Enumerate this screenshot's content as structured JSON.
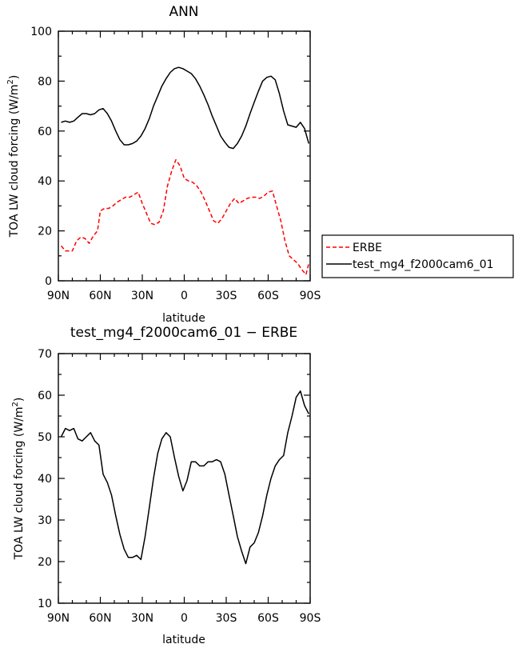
{
  "chart_data": [
    {
      "type": "line",
      "title": "ANN",
      "xlabel": "latitude",
      "ylabel": "TOA LW cloud forcing (W/m²)",
      "ylabel_main": "TOA LW cloud forcing (W/m",
      "ylabel_sup": "2",
      "ylabel_end": ")",
      "xlim": [
        90,
        -90
      ],
      "ylim": [
        0,
        100
      ],
      "x_ticks": [
        90,
        60,
        30,
        0,
        -30,
        -60,
        -90
      ],
      "x_tick_labels": [
        "90N",
        "60N",
        "30N",
        "0",
        "30S",
        "60S",
        "90S"
      ],
      "y_ticks": [
        0,
        20,
        40,
        60,
        80,
        100
      ],
      "y_tick_labels": [
        "0",
        "20",
        "40",
        "60",
        "80",
        "100"
      ],
      "legend_position": "right",
      "series": [
        {
          "name": "ERBE",
          "color": "#ff0000",
          "dash": true,
          "points": [
            [
              88,
              14
            ],
            [
              85,
              12
            ],
            [
              80,
              12
            ],
            [
              77,
              16
            ],
            [
              74,
              17.5
            ],
            [
              71,
              17
            ],
            [
              68,
              15
            ],
            [
              65,
              18
            ],
            [
              62,
              20
            ],
            [
              60,
              28
            ],
            [
              57,
              29
            ],
            [
              54,
              29
            ],
            [
              51,
              30
            ],
            [
              48,
              31.5
            ],
            [
              45,
              32.5
            ],
            [
              42,
              33.5
            ],
            [
              39,
              33.5
            ],
            [
              36,
              34.5
            ],
            [
              33,
              35.5
            ],
            [
              30,
              31
            ],
            [
              27,
              27
            ],
            [
              24,
              23
            ],
            [
              21,
              22.5
            ],
            [
              18,
              23.5
            ],
            [
              15,
              28
            ],
            [
              12,
              38
            ],
            [
              9,
              44
            ],
            [
              6,
              48.5
            ],
            [
              3,
              46
            ],
            [
              0,
              41
            ],
            [
              -3,
              40
            ],
            [
              -6,
              39.5
            ],
            [
              -9,
              38
            ],
            [
              -12,
              35.5
            ],
            [
              -15,
              32
            ],
            [
              -18,
              28
            ],
            [
              -21,
              24
            ],
            [
              -24,
              23
            ],
            [
              -27,
              25
            ],
            [
              -30,
              28
            ],
            [
              -33,
              31
            ],
            [
              -36,
              33
            ],
            [
              -39,
              31
            ],
            [
              -42,
              32
            ],
            [
              -45,
              33
            ],
            [
              -48,
              33.5
            ],
            [
              -51,
              33.5
            ],
            [
              -54,
              33
            ],
            [
              -57,
              34
            ],
            [
              -60,
              35.5
            ],
            [
              -63,
              36
            ],
            [
              -66,
              30
            ],
            [
              -69,
              24
            ],
            [
              -72,
              16
            ],
            [
              -75,
              10
            ],
            [
              -78,
              8.5
            ],
            [
              -81,
              7
            ],
            [
              -84,
              4.5
            ],
            [
              -87,
              2.5
            ],
            [
              -89,
              7
            ]
          ]
        },
        {
          "name": "test_mg4_f2000cam6_01",
          "color": "#000000",
          "dash": false,
          "points": [
            [
              88,
              63.5
            ],
            [
              85,
              64
            ],
            [
              82,
              63.5
            ],
            [
              79,
              64
            ],
            [
              76,
              65.5
            ],
            [
              73,
              67
            ],
            [
              70,
              67
            ],
            [
              67,
              66.5
            ],
            [
              64,
              67
            ],
            [
              61,
              68.5
            ],
            [
              58,
              69
            ],
            [
              55,
              67
            ],
            [
              52,
              64
            ],
            [
              49,
              60
            ],
            [
              46,
              56.5
            ],
            [
              43,
              54.5
            ],
            [
              40,
              54.5
            ],
            [
              37,
              55
            ],
            [
              34,
              56
            ],
            [
              31,
              58
            ],
            [
              28,
              61
            ],
            [
              25,
              65
            ],
            [
              22,
              70
            ],
            [
              19,
              74
            ],
            [
              16,
              78
            ],
            [
              13,
              81
            ],
            [
              10,
              83.5
            ],
            [
              7,
              85
            ],
            [
              4,
              85.5
            ],
            [
              1,
              85
            ],
            [
              -2,
              84
            ],
            [
              -5,
              83
            ],
            [
              -8,
              81
            ],
            [
              -11,
              78
            ],
            [
              -14,
              74.5
            ],
            [
              -17,
              70.5
            ],
            [
              -20,
              66
            ],
            [
              -23,
              62
            ],
            [
              -26,
              58
            ],
            [
              -29,
              55.5
            ],
            [
              -32,
              53.5
            ],
            [
              -35,
              53
            ],
            [
              -38,
              55
            ],
            [
              -41,
              58
            ],
            [
              -44,
              62
            ],
            [
              -47,
              67
            ],
            [
              -50,
              71.5
            ],
            [
              -53,
              76
            ],
            [
              -56,
              80
            ],
            [
              -59,
              81.5
            ],
            [
              -62,
              82
            ],
            [
              -65,
              80.5
            ],
            [
              -68,
              75
            ],
            [
              -71,
              68
            ],
            [
              -74,
              62.5
            ],
            [
              -77,
              62
            ],
            [
              -80,
              61.5
            ],
            [
              -83,
              63.5
            ],
            [
              -86,
              61
            ],
            [
              -89,
              55
            ]
          ]
        }
      ]
    },
    {
      "type": "line",
      "title": "test_mg4_f2000cam6_01 − ERBE",
      "xlabel": "latitude",
      "ylabel": "TOA LW cloud forcing (W/m²)",
      "ylabel_main": "TOA LW cloud forcing (W/m",
      "ylabel_sup": "2",
      "ylabel_end": ")",
      "xlim": [
        90,
        -90
      ],
      "ylim": [
        10,
        70
      ],
      "x_ticks": [
        90,
        60,
        30,
        0,
        -30,
        -60,
        -90
      ],
      "x_tick_labels": [
        "90N",
        "60N",
        "30N",
        "0",
        "30S",
        "60S",
        "90S"
      ],
      "y_ticks": [
        10,
        20,
        30,
        40,
        50,
        60,
        70
      ],
      "y_tick_labels": [
        "10",
        "20",
        "30",
        "40",
        "50",
        "60",
        "70"
      ],
      "series": [
        {
          "color": "#000000",
          "dash": false,
          "points": [
            [
              88,
              50
            ],
            [
              85,
              52
            ],
            [
              82,
              51.5
            ],
            [
              79,
              52
            ],
            [
              76,
              49.5
            ],
            [
              73,
              49
            ],
            [
              70,
              50
            ],
            [
              67,
              51
            ],
            [
              64,
              49
            ],
            [
              61,
              48
            ],
            [
              58,
              41
            ],
            [
              55,
              39
            ],
            [
              52,
              36
            ],
            [
              49,
              31
            ],
            [
              46,
              26.5
            ],
            [
              43,
              23
            ],
            [
              40,
              21
            ],
            [
              37,
              21
            ],
            [
              34,
              21.5
            ],
            [
              31,
              20.5
            ],
            [
              28,
              26
            ],
            [
              25,
              33
            ],
            [
              22,
              40
            ],
            [
              19,
              46
            ],
            [
              16,
              49.5
            ],
            [
              13,
              51
            ],
            [
              10,
              50
            ],
            [
              7,
              45
            ],
            [
              4,
              40.5
            ],
            [
              1,
              37
            ],
            [
              -2,
              39.5
            ],
            [
              -5,
              44
            ],
            [
              -8,
              44
            ],
            [
              -11,
              43
            ],
            [
              -14,
              43
            ],
            [
              -17,
              44
            ],
            [
              -20,
              44
            ],
            [
              -23,
              44.5
            ],
            [
              -26,
              44
            ],
            [
              -29,
              41
            ],
            [
              -32,
              36
            ],
            [
              -35,
              31
            ],
            [
              -38,
              26
            ],
            [
              -41,
              22.5
            ],
            [
              -44,
              19.5
            ],
            [
              -47,
              23.5
            ],
            [
              -50,
              24.5
            ],
            [
              -53,
              27
            ],
            [
              -56,
              31
            ],
            [
              -59,
              36
            ],
            [
              -62,
              40
            ],
            [
              -65,
              43
            ],
            [
              -68,
              44.5
            ],
            [
              -71,
              45.5
            ],
            [
              -74,
              51
            ],
            [
              -77,
              55
            ],
            [
              -80,
              59.5
            ],
            [
              -83,
              61
            ],
            [
              -86,
              57.5
            ],
            [
              -89,
              55.5
            ]
          ]
        }
      ]
    }
  ]
}
